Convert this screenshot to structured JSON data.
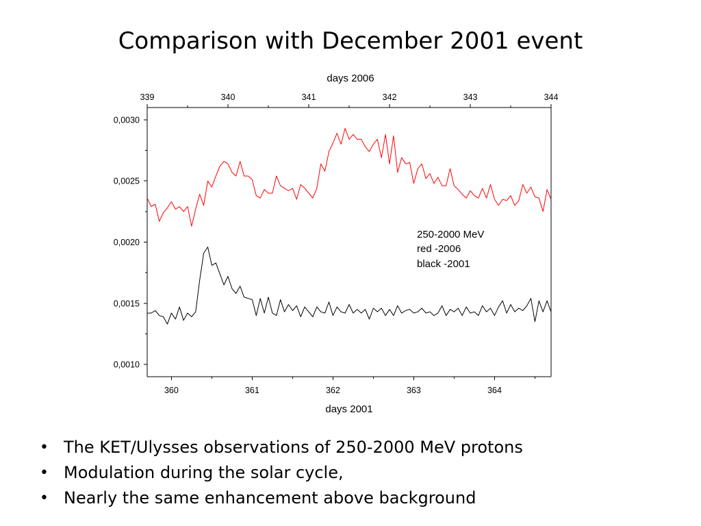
{
  "slide": {
    "title": "Comparison with December 2001 event",
    "bullets": [
      "The KET/Ulysses observations of 250-2000 MeV protons",
      "Modulation during the solar cycle,",
      "Nearly the same enhancement above background"
    ]
  },
  "chart_data": {
    "type": "line",
    "grid": false,
    "top_axis": {
      "label": "days 2006",
      "ticks": [
        339,
        340,
        341,
        342,
        343,
        344
      ],
      "range": [
        339,
        344
      ]
    },
    "bottom_axis": {
      "label": "days 2001",
      "ticks": [
        360,
        361,
        362,
        363,
        364
      ],
      "range": [
        359.7,
        364.7
      ]
    },
    "y_axis": {
      "ticks": [
        0.001,
        0.0015,
        0.002,
        0.0025,
        0.003
      ],
      "tick_labels": [
        "0,0010",
        "0,0015",
        "0,0020",
        "0,0025",
        "0,0030"
      ],
      "range": [
        0.0009,
        0.0031
      ]
    },
    "annotation": [
      "250-2000 MeV",
      "red -2006",
      "black -2001"
    ],
    "series": [
      {
        "color": "#ff0000",
        "x_axis": "top",
        "x": [
          339,
          339.05,
          339.1,
          339.15,
          339.2,
          339.25,
          339.3,
          339.35,
          339.4,
          339.45,
          339.5,
          339.55,
          339.6,
          339.65,
          339.7,
          339.75,
          339.8,
          339.85,
          339.9,
          339.95,
          340,
          340.05,
          340.1,
          340.15,
          340.2,
          340.25,
          340.3,
          340.35,
          340.4,
          340.45,
          340.5,
          340.55,
          340.6,
          340.65,
          340.7,
          340.75,
          340.8,
          340.85,
          340.9,
          340.95,
          341,
          341.05,
          341.1,
          341.15,
          341.2,
          341.25,
          341.3,
          341.35,
          341.4,
          341.45,
          341.5,
          341.55,
          341.6,
          341.65,
          341.7,
          341.75,
          341.8,
          341.85,
          341.9,
          341.95,
          342,
          342.05,
          342.1,
          342.15,
          342.2,
          342.25,
          342.3,
          342.35,
          342.4,
          342.45,
          342.5,
          342.55,
          342.6,
          342.65,
          342.7,
          342.75,
          342.8,
          342.85,
          342.9,
          342.95,
          343,
          343.05,
          343.1,
          343.15,
          343.2,
          343.25,
          343.3,
          343.35,
          343.4,
          343.45,
          343.5,
          343.55,
          343.6,
          343.65,
          343.7,
          343.75,
          343.8,
          343.85,
          343.9,
          343.95,
          344
        ],
        "y": [
          0.00236,
          0.00229,
          0.00231,
          0.00217,
          0.00224,
          0.00228,
          0.00233,
          0.00227,
          0.00229,
          0.00225,
          0.00229,
          0.00213,
          0.00227,
          0.00239,
          0.0023,
          0.0025,
          0.00245,
          0.00254,
          0.00262,
          0.00266,
          0.00264,
          0.00257,
          0.00254,
          0.00266,
          0.00254,
          0.00254,
          0.00251,
          0.00238,
          0.00236,
          0.00243,
          0.0024,
          0.0024,
          0.00254,
          0.00246,
          0.00244,
          0.00242,
          0.00244,
          0.00235,
          0.00247,
          0.00244,
          0.0024,
          0.00236,
          0.00244,
          0.00264,
          0.00258,
          0.00274,
          0.00281,
          0.00289,
          0.0028,
          0.00293,
          0.00284,
          0.00288,
          0.00284,
          0.00284,
          0.00278,
          0.00274,
          0.0028,
          0.00284,
          0.00269,
          0.00288,
          0.00264,
          0.00287,
          0.00257,
          0.00269,
          0.00264,
          0.00265,
          0.00248,
          0.0026,
          0.00264,
          0.00252,
          0.00256,
          0.00248,
          0.00253,
          0.00246,
          0.00246,
          0.0026,
          0.00246,
          0.00243,
          0.00239,
          0.00236,
          0.00242,
          0.00238,
          0.00236,
          0.00244,
          0.00236,
          0.00247,
          0.00235,
          0.0023,
          0.00235,
          0.00234,
          0.00238,
          0.0023,
          0.00234,
          0.00247,
          0.0024,
          0.00245,
          0.00237,
          0.00236,
          0.00225,
          0.00243,
          0.00235
        ]
      },
      {
        "color": "#000000",
        "x_axis": "bottom",
        "x": [
          359.7,
          359.75,
          359.8,
          359.85,
          359.9,
          359.95,
          360,
          360.05,
          360.1,
          360.15,
          360.2,
          360.25,
          360.3,
          360.35,
          360.4,
          360.45,
          360.5,
          360.55,
          360.6,
          360.65,
          360.7,
          360.75,
          360.8,
          360.85,
          360.9,
          360.95,
          361,
          361.05,
          361.1,
          361.15,
          361.2,
          361.25,
          361.3,
          361.35,
          361.4,
          361.45,
          361.5,
          361.55,
          361.6,
          361.65,
          361.7,
          361.75,
          361.8,
          361.85,
          361.9,
          361.95,
          362,
          362.05,
          362.1,
          362.15,
          362.2,
          362.25,
          362.3,
          362.35,
          362.4,
          362.45,
          362.5,
          362.55,
          362.6,
          362.65,
          362.7,
          362.75,
          362.8,
          362.85,
          362.9,
          362.95,
          363,
          363.05,
          363.1,
          363.15,
          363.2,
          363.25,
          363.3,
          363.35,
          363.4,
          363.45,
          363.5,
          363.55,
          363.6,
          363.65,
          363.7,
          363.75,
          363.8,
          363.85,
          363.9,
          363.95,
          364,
          364.05,
          364.1,
          364.15,
          364.2,
          364.25,
          364.3,
          364.35,
          364.4,
          364.45,
          364.5,
          364.55,
          364.6,
          364.65,
          364.7
        ],
        "y": [
          0.00142,
          0.00142,
          0.00144,
          0.0014,
          0.00139,
          0.00133,
          0.00142,
          0.00137,
          0.00147,
          0.00136,
          0.00142,
          0.00139,
          0.00143,
          0.00169,
          0.00191,
          0.00196,
          0.00181,
          0.00183,
          0.00174,
          0.00165,
          0.00172,
          0.00162,
          0.00158,
          0.00164,
          0.00155,
          0.00154,
          0.00153,
          0.0014,
          0.00154,
          0.00142,
          0.00155,
          0.00142,
          0.0014,
          0.00153,
          0.00143,
          0.00149,
          0.00144,
          0.00148,
          0.00139,
          0.00147,
          0.00143,
          0.00139,
          0.00147,
          0.00143,
          0.00142,
          0.00151,
          0.0014,
          0.00147,
          0.00143,
          0.00142,
          0.00149,
          0.00142,
          0.00145,
          0.00142,
          0.00145,
          0.00137,
          0.00146,
          0.00143,
          0.00146,
          0.0014,
          0.00145,
          0.0014,
          0.00148,
          0.00142,
          0.00144,
          0.00145,
          0.00142,
          0.00143,
          0.00146,
          0.00142,
          0.00143,
          0.0014,
          0.00142,
          0.00148,
          0.0014,
          0.00145,
          0.00143,
          0.00146,
          0.0014,
          0.00147,
          0.00142,
          0.00143,
          0.0014,
          0.00148,
          0.00143,
          0.00146,
          0.0014,
          0.00147,
          0.00152,
          0.00142,
          0.00149,
          0.00143,
          0.00146,
          0.00144,
          0.00148,
          0.00154,
          0.00135,
          0.00152,
          0.00143,
          0.00152,
          0.00143
        ]
      }
    ]
  }
}
